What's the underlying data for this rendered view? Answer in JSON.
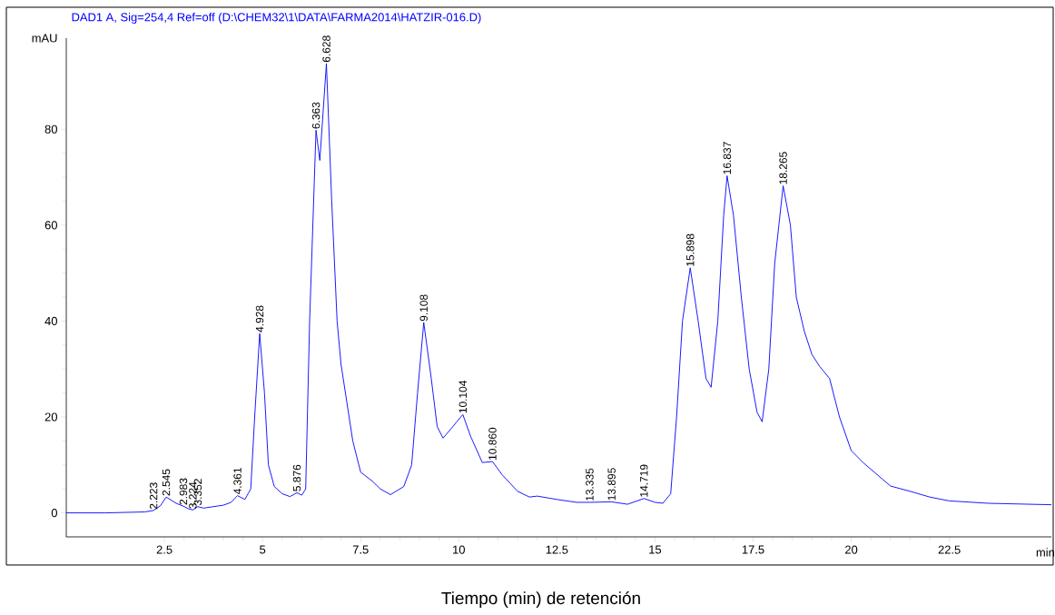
{
  "chart_data": {
    "type": "line",
    "title": "DAD1 A, Sig=254,4 Ref=off (D:\\CHEM32\\1\\DATA\\FARMA2014\\HATZIR-016.D)",
    "xlabel": "Tiempo (min) de retención",
    "ylabel": "mAU",
    "color": "#0000ff",
    "x": [
      0,
      1.0,
      2.0,
      2.223,
      2.4,
      2.545,
      2.8,
      2.983,
      3.1,
      3.224,
      3.352,
      3.5,
      4.0,
      4.2,
      4.361,
      4.55,
      4.7,
      4.8,
      4.928,
      5.05,
      5.15,
      5.3,
      5.5,
      5.7,
      5.876,
      6.0,
      6.1,
      6.2,
      6.363,
      6.46,
      6.628,
      6.76,
      6.9,
      7.0,
      7.3,
      7.5,
      7.8,
      8.0,
      8.26,
      8.6,
      8.8,
      8.95,
      9.108,
      9.3,
      9.45,
      9.6,
      9.8,
      9.95,
      10.104,
      10.3,
      10.6,
      10.86,
      11.1,
      11.5,
      11.8,
      12.0,
      12.5,
      13.0,
      13.335,
      13.895,
      14.3,
      14.719,
      15.0,
      15.2,
      15.4,
      15.55,
      15.7,
      15.898,
      16.1,
      16.3,
      16.43,
      16.6,
      16.75,
      16.837,
      17.0,
      17.2,
      17.4,
      17.6,
      17.73,
      17.9,
      18.05,
      18.265,
      18.45,
      18.6,
      18.8,
      19.0,
      19.2,
      19.45,
      19.7,
      20.0,
      20.3,
      20.8,
      21.0,
      21.5,
      22.0,
      22.5,
      23.5,
      25.1
    ],
    "values": [
      0,
      0,
      0.2,
      0.5,
      1.5,
      3.3,
      2.0,
      1.4,
      0.9,
      0.6,
      1.3,
      1.0,
      1.6,
      2.2,
      3.6,
      2.8,
      5,
      20,
      37.4,
      25,
      10,
      5.5,
      4,
      3.4,
      4.2,
      3.7,
      5,
      40,
      79.8,
      73.5,
      93.7,
      65.6,
      40,
      31,
      15,
      8.5,
      6.6,
      5,
      3.8,
      5.5,
      10,
      25,
      39.7,
      28,
      18,
      15.6,
      17.5,
      19,
      20.5,
      16,
      10.5,
      10.7,
      8,
      4.5,
      3.3,
      3.5,
      2.8,
      2.2,
      2.2,
      2.3,
      1.8,
      3.0,
      2.2,
      2.0,
      4,
      20,
      40,
      51.1,
      40,
      28,
      26.2,
      40,
      62,
      70.3,
      62,
      45,
      30,
      21,
      19,
      30,
      52,
      68.2,
      60,
      45,
      38,
      33,
      30.5,
      28,
      20,
      13,
      10.5,
      7,
      5.6,
      4.5,
      3.3,
      2.5,
      2.0,
      1.7
    ],
    "xlim": [
      0,
      25.1
    ],
    "ylim": [
      -5,
      99
    ],
    "xticks": [
      {
        "value": 2.5,
        "label": "2.5"
      },
      5,
      {
        "value": 7.5,
        "label": "7.5"
      },
      10,
      {
        "value": 12.5,
        "label": "12.5"
      },
      15,
      {
        "value": 17.5,
        "label": "17.5"
      },
      20,
      {
        "value": 22.5,
        "label": "22.5"
      }
    ],
    "yticks": [
      0,
      20,
      40,
      60,
      80
    ],
    "annotations": [
      "min",
      {
        "text": "2.223",
        "x": 2.223,
        "y": 0.5
      },
      {
        "text": "2.545",
        "x": 2.545,
        "y": 3.3
      },
      {
        "text": "2.983",
        "x": 2.983,
        "y": 1.4
      },
      {
        "text": "3.224",
        "x": 3.224,
        "y": 0.6
      },
      {
        "text": "3.352",
        "x": 3.352,
        "y": 1.3
      },
      {
        "text": "4.361",
        "x": 4.361,
        "y": 3.6
      },
      {
        "text": "4.928",
        "x": 4.928,
        "y": 37.4
      },
      {
        "text": "5.876",
        "x": 5.876,
        "y": 4.2
      },
      {
        "text": "6.363",
        "x": 6.363,
        "y": 79.8
      },
      {
        "text": "6.628",
        "x": 6.628,
        "y": 93.7
      },
      {
        "text": "9.108",
        "x": 9.108,
        "y": 39.7
      },
      {
        "text": "10.104",
        "x": 10.104,
        "y": 20.5
      },
      {
        "text": "10.860",
        "x": 10.86,
        "y": 10.7
      },
      {
        "text": "13.335",
        "x": 13.335,
        "y": 2.2
      },
      {
        "text": "13.895",
        "x": 13.895,
        "y": 2.3
      },
      {
        "text": "14.719",
        "x": 14.719,
        "y": 3.0
      },
      {
        "text": "15.898",
        "x": 15.898,
        "y": 51.1
      },
      {
        "text": "16.837",
        "x": 16.837,
        "y": 70.3
      },
      {
        "text": "18.265",
        "x": 18.265,
        "y": 68.2
      }
    ]
  }
}
